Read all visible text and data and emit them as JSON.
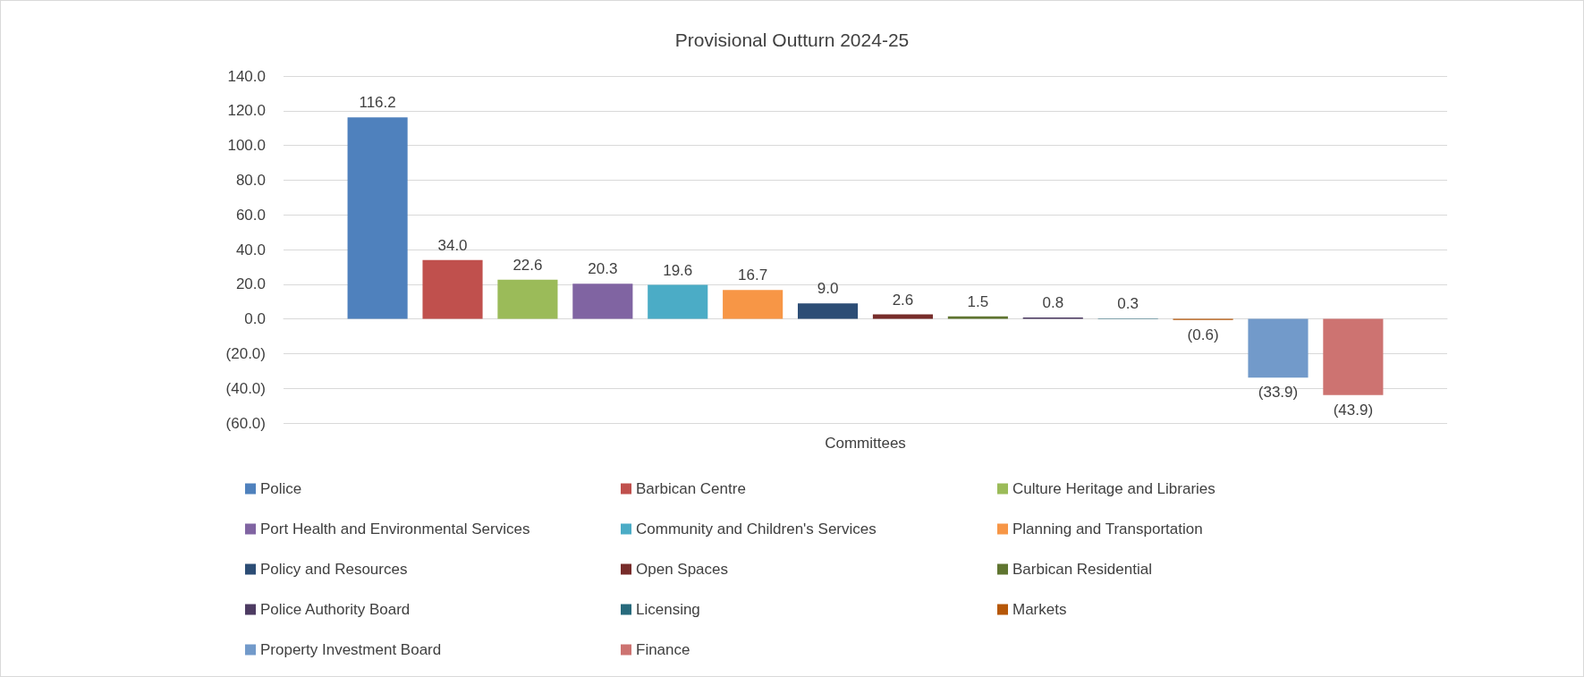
{
  "chart_data": {
    "type": "bar",
    "title": "Provisional Outturn 2024-25",
    "categories": [
      "Committees"
    ],
    "ylim": [
      -60,
      140
    ],
    "yticks": [
      {
        "value": -60,
        "label": "(60.0)"
      },
      {
        "value": -40,
        "label": "(40.0)"
      },
      {
        "value": -20,
        "label": "(20.0)"
      },
      {
        "value": 0,
        "label": "0.0"
      },
      {
        "value": 20,
        "label": "20.0"
      },
      {
        "value": 40,
        "label": "40.0"
      },
      {
        "value": 60,
        "label": "60.0"
      },
      {
        "value": 80,
        "label": "80.0"
      },
      {
        "value": 100,
        "label": "100.0"
      },
      {
        "value": 120,
        "label": "120.0"
      },
      {
        "value": 140,
        "label": "140.0"
      }
    ],
    "grid": "y",
    "legend": "bottom",
    "series": [
      {
        "name": "Police",
        "color": "#4f81bd",
        "values": [
          116.2
        ],
        "value_labels": [
          "116.2"
        ]
      },
      {
        "name": "Barbican Centre",
        "color": "#c0504d",
        "values": [
          34.0
        ],
        "value_labels": [
          "34.0"
        ]
      },
      {
        "name": "Culture Heritage and Libraries",
        "color": "#9bbb59",
        "values": [
          22.6
        ],
        "value_labels": [
          "22.6"
        ]
      },
      {
        "name": "Port Health and Environmental Services",
        "color": "#8064a2",
        "values": [
          20.3
        ],
        "value_labels": [
          "20.3"
        ]
      },
      {
        "name": "Community and Children's Services",
        "color": "#4bacc6",
        "values": [
          19.6
        ],
        "value_labels": [
          "19.6"
        ]
      },
      {
        "name": "Planning and Transportation",
        "color": "#f79646",
        "values": [
          16.7
        ],
        "value_labels": [
          "16.7"
        ]
      },
      {
        "name": "Policy and Resources",
        "color": "#2c4d75",
        "values": [
          9.0
        ],
        "value_labels": [
          "9.0"
        ]
      },
      {
        "name": "Open Spaces",
        "color": "#772c2a",
        "values": [
          2.6
        ],
        "value_labels": [
          "2.6"
        ]
      },
      {
        "name": "Barbican Residential",
        "color": "#5f7530",
        "values": [
          1.5
        ],
        "value_labels": [
          "1.5"
        ]
      },
      {
        "name": "Police Authority Board",
        "color": "#4d3b62",
        "values": [
          0.8
        ],
        "value_labels": [
          "0.8"
        ]
      },
      {
        "name": "Licensing",
        "color": "#276a7c",
        "values": [
          0.3
        ],
        "value_labels": [
          "0.3"
        ]
      },
      {
        "name": "Markets",
        "color": "#b65708",
        "values": [
          -0.6
        ],
        "value_labels": [
          "(0.6)"
        ]
      },
      {
        "name": "Property Investment Board",
        "color": "#729aca",
        "values": [
          -33.9
        ],
        "value_labels": [
          "(33.9)"
        ]
      },
      {
        "name": "Finance",
        "color": "#cd7371",
        "values": [
          -43.9
        ],
        "value_labels": [
          "(43.9)"
        ]
      }
    ]
  }
}
